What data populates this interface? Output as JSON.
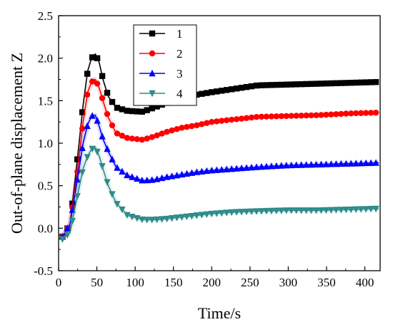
{
  "chart_data": {
    "type": "line",
    "title": "",
    "xlabel": "Time/s",
    "ylabel": "Out-of-plane displacement Z",
    "xlim": [
      0,
      420
    ],
    "ylim": [
      -0.5,
      2.5
    ],
    "xticks": [
      0,
      50,
      100,
      150,
      200,
      250,
      300,
      350,
      400
    ],
    "yticks": [
      -0.5,
      0.0,
      0.5,
      1.0,
      1.5,
      2.0,
      2.5
    ],
    "x_tick_labels": [
      "0",
      "50",
      "100",
      "150",
      "200",
      "250",
      "300",
      "350",
      "400"
    ],
    "y_tick_labels": [
      "-0.5",
      "0.0",
      "0.5",
      "1.0",
      "1.5",
      "2.0",
      "2.5"
    ],
    "grid": false,
    "legend_position": "top-center",
    "series": [
      {
        "name": "1",
        "color": "#000000",
        "marker": "square",
        "points": [
          [
            5,
            -0.1
          ],
          [
            15,
            0.05
          ],
          [
            25,
            0.85
          ],
          [
            32,
            1.45
          ],
          [
            38,
            1.85
          ],
          [
            43,
            2.0
          ],
          [
            48,
            2.05
          ],
          [
            53,
            1.95
          ],
          [
            58,
            1.75
          ],
          [
            65,
            1.55
          ],
          [
            75,
            1.42
          ],
          [
            90,
            1.38
          ],
          [
            110,
            1.37
          ],
          [
            125,
            1.42
          ],
          [
            140,
            1.47
          ],
          [
            160,
            1.53
          ],
          [
            180,
            1.57
          ],
          [
            200,
            1.6
          ],
          [
            230,
            1.64
          ],
          [
            260,
            1.68
          ],
          [
            300,
            1.69
          ],
          [
            340,
            1.7
          ],
          [
            380,
            1.71
          ],
          [
            418,
            1.72
          ]
        ]
      },
      {
        "name": "2",
        "color": "#ff0000",
        "marker": "circle",
        "points": [
          [
            5,
            -0.1
          ],
          [
            15,
            0.05
          ],
          [
            25,
            0.7
          ],
          [
            32,
            1.25
          ],
          [
            38,
            1.6
          ],
          [
            43,
            1.72
          ],
          [
            48,
            1.75
          ],
          [
            53,
            1.65
          ],
          [
            58,
            1.5
          ],
          [
            65,
            1.3
          ],
          [
            75,
            1.12
          ],
          [
            90,
            1.06
          ],
          [
            110,
            1.04
          ],
          [
            125,
            1.08
          ],
          [
            140,
            1.13
          ],
          [
            160,
            1.18
          ],
          [
            180,
            1.21
          ],
          [
            200,
            1.25
          ],
          [
            230,
            1.28
          ],
          [
            260,
            1.31
          ],
          [
            300,
            1.32
          ],
          [
            340,
            1.33
          ],
          [
            380,
            1.35
          ],
          [
            418,
            1.36
          ]
        ]
      },
      {
        "name": "3",
        "color": "#0000ff",
        "marker": "triangle-up",
        "points": [
          [
            5,
            -0.1
          ],
          [
            15,
            0.05
          ],
          [
            25,
            0.6
          ],
          [
            32,
            1.0
          ],
          [
            38,
            1.22
          ],
          [
            43,
            1.32
          ],
          [
            48,
            1.33
          ],
          [
            53,
            1.2
          ],
          [
            58,
            1.05
          ],
          [
            65,
            0.9
          ],
          [
            75,
            0.72
          ],
          [
            90,
            0.62
          ],
          [
            110,
            0.56
          ],
          [
            125,
            0.57
          ],
          [
            140,
            0.6
          ],
          [
            160,
            0.63
          ],
          [
            180,
            0.66
          ],
          [
            200,
            0.68
          ],
          [
            230,
            0.7
          ],
          [
            260,
            0.72
          ],
          [
            300,
            0.74
          ],
          [
            340,
            0.75
          ],
          [
            380,
            0.76
          ],
          [
            418,
            0.77
          ]
        ]
      },
      {
        "name": "4",
        "color": "#2e8b8b",
        "marker": "triangle-down",
        "points": [
          [
            5,
            -0.13
          ],
          [
            15,
            -0.05
          ],
          [
            25,
            0.4
          ],
          [
            32,
            0.7
          ],
          [
            38,
            0.85
          ],
          [
            43,
            0.93
          ],
          [
            48,
            0.95
          ],
          [
            53,
            0.85
          ],
          [
            58,
            0.7
          ],
          [
            65,
            0.5
          ],
          [
            75,
            0.3
          ],
          [
            90,
            0.15
          ],
          [
            110,
            0.1
          ],
          [
            125,
            0.1
          ],
          [
            140,
            0.11
          ],
          [
            160,
            0.13
          ],
          [
            180,
            0.15
          ],
          [
            200,
            0.17
          ],
          [
            230,
            0.19
          ],
          [
            260,
            0.2
          ],
          [
            300,
            0.21
          ],
          [
            340,
            0.21
          ],
          [
            380,
            0.22
          ],
          [
            418,
            0.23
          ]
        ]
      }
    ]
  }
}
